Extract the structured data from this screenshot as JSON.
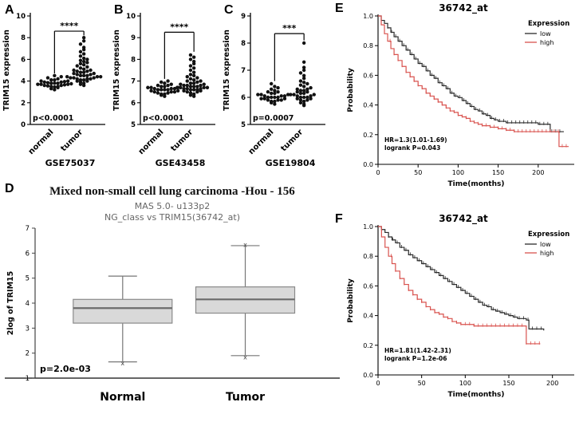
{
  "chart_data": [
    {
      "id": "A",
      "type": "scatter",
      "panel_label": "A",
      "dataset": "GSE75037",
      "ylabel": "TRIM15 expression",
      "ylim": [
        0,
        10
      ],
      "yticks": [
        0,
        2,
        4,
        6,
        8,
        10
      ],
      "groups": [
        "normal",
        "tumor"
      ],
      "pvalue": "p<0.0001",
      "significance": "****",
      "bracket": {
        "top": 8.6,
        "left": 4.7,
        "right": 8.2
      },
      "series": [
        {
          "name": "normal",
          "values": [
            3.2,
            3.3,
            3.4,
            3.45,
            3.5,
            3.5,
            3.55,
            3.6,
            3.6,
            3.65,
            3.7,
            3.7,
            3.7,
            3.75,
            3.8,
            3.8,
            3.8,
            3.85,
            3.9,
            3.9,
            3.95,
            4.0,
            4.0,
            4.1,
            4.1,
            4.2,
            4.3,
            4.4,
            4.5
          ]
        },
        {
          "name": "tumor",
          "values": [
            3.6,
            3.7,
            3.8,
            3.9,
            4.0,
            4.0,
            4.1,
            4.1,
            4.2,
            4.2,
            4.2,
            4.3,
            4.3,
            4.3,
            4.4,
            4.4,
            4.4,
            4.5,
            4.5,
            4.5,
            4.6,
            4.6,
            4.7,
            4.7,
            4.8,
            4.8,
            4.9,
            4.9,
            5.0,
            5.0,
            5.1,
            5.2,
            5.3,
            5.4,
            5.5,
            5.6,
            5.7,
            5.8,
            5.9,
            6.0,
            6.1,
            6.3,
            6.5,
            6.7,
            6.9,
            7.1,
            7.4,
            7.7,
            8.0
          ]
        }
      ]
    },
    {
      "id": "B",
      "type": "scatter",
      "panel_label": "B",
      "dataset": "GSE43458",
      "ylabel": "TRIM15 expression",
      "ylim": [
        5,
        10
      ],
      "yticks": [
        5,
        6,
        7,
        8,
        9,
        10
      ],
      "groups": [
        "normal",
        "tumor"
      ],
      "pvalue": "p<0.0001",
      "significance": "****",
      "bracket": {
        "top": 9.25,
        "left": 7.1,
        "right": 8.35
      },
      "series": [
        {
          "name": "normal",
          "values": [
            6.3,
            6.35,
            6.4,
            6.4,
            6.45,
            6.45,
            6.5,
            6.5,
            6.5,
            6.55,
            6.55,
            6.6,
            6.6,
            6.6,
            6.6,
            6.65,
            6.65,
            6.65,
            6.7,
            6.7,
            6.7,
            6.75,
            6.75,
            6.8,
            6.8,
            6.85,
            6.9,
            6.95,
            7.0
          ]
        },
        {
          "name": "tumor",
          "values": [
            6.3,
            6.35,
            6.4,
            6.45,
            6.5,
            6.5,
            6.55,
            6.55,
            6.6,
            6.6,
            6.6,
            6.65,
            6.65,
            6.65,
            6.7,
            6.7,
            6.7,
            6.7,
            6.75,
            6.75,
            6.75,
            6.8,
            6.8,
            6.8,
            6.85,
            6.85,
            6.9,
            6.9,
            6.95,
            7.0,
            7.0,
            7.05,
            7.1,
            7.15,
            7.2,
            7.25,
            7.3,
            7.4,
            7.5,
            7.6,
            7.7,
            7.8,
            7.9,
            8.0,
            8.1,
            8.2
          ]
        }
      ]
    },
    {
      "id": "C",
      "type": "scatter",
      "panel_label": "C",
      "dataset": "GSE19804",
      "ylabel": "TRIM15 expression",
      "ylim": [
        5,
        9
      ],
      "yticks": [
        5,
        6,
        7,
        8,
        9
      ],
      "groups": [
        "normal",
        "tumor"
      ],
      "pvalue": "p=0.0007",
      "significance": "***",
      "bracket": {
        "top": 8.35,
        "left": 6.6,
        "right": 8.1
      },
      "series": [
        {
          "name": "normal",
          "values": [
            5.75,
            5.8,
            5.85,
            5.85,
            5.9,
            5.9,
            5.9,
            5.95,
            5.95,
            5.95,
            6.0,
            6.0,
            6.0,
            6.0,
            6.05,
            6.05,
            6.05,
            6.1,
            6.1,
            6.1,
            6.15,
            6.15,
            6.2,
            6.2,
            6.25,
            6.3,
            6.35,
            6.4,
            6.5
          ]
        },
        {
          "name": "tumor",
          "values": [
            5.7,
            5.75,
            5.8,
            5.85,
            5.9,
            5.9,
            5.95,
            5.95,
            6.0,
            6.0,
            6.0,
            6.05,
            6.05,
            6.1,
            6.1,
            6.1,
            6.15,
            6.15,
            6.2,
            6.2,
            6.25,
            6.25,
            6.3,
            6.3,
            6.35,
            6.4,
            6.45,
            6.5,
            6.55,
            6.6,
            6.7,
            6.8,
            6.9,
            7.0,
            7.1,
            7.3,
            8.0
          ]
        }
      ]
    },
    {
      "id": "D",
      "type": "box",
      "panel_label": "D",
      "title": "Mixed non-small cell lung carcinoma -Hou - 156",
      "subtitle1": "MAS 5.0- u133p2",
      "subtitle2": "NG_class vs TRIM15(36742_at)",
      "ylabel": "2log of TRIM15",
      "ylim": [
        1,
        7
      ],
      "yticks": [
        1,
        2,
        3,
        4,
        5,
        6,
        7
      ],
      "pvalue": "p=2.0e-03",
      "categories": [
        "Normal",
        "Tumor"
      ],
      "boxes": [
        {
          "label": "Normal",
          "whisker_low": 1.65,
          "q1": 3.2,
          "median": 3.8,
          "q3": 4.15,
          "whisker_high": 5.08,
          "x_marks": [
            1.6
          ]
        },
        {
          "label": "Tumor",
          "whisker_low": 1.9,
          "q1": 3.6,
          "median": 4.15,
          "q3": 4.65,
          "whisker_high": 6.3,
          "x_marks": [
            1.85,
            6.35
          ]
        }
      ]
    },
    {
      "id": "E",
      "type": "km",
      "panel_label": "E",
      "title": "36742_at",
      "xlabel": "Time(months)",
      "ylabel": "Probability",
      "xlim": [
        0,
        245
      ],
      "xticks": [
        0,
        50,
        100,
        150,
        200
      ],
      "ylim": [
        0,
        1
      ],
      "yticks": [
        0,
        0.2,
        0.4,
        0.6,
        0.8,
        1
      ],
      "legend_title": "Expression",
      "annotation": [
        "HR=1.3(1.01-1.69)",
        "logrank P=0.043"
      ],
      "series": [
        {
          "name": "low",
          "color": "#2b2b2b",
          "points": [
            [
              0,
              1
            ],
            [
              4,
              0.97
            ],
            [
              8,
              0.95
            ],
            [
              12,
              0.92
            ],
            [
              16,
              0.89
            ],
            [
              20,
              0.86
            ],
            [
              25,
              0.83
            ],
            [
              30,
              0.8
            ],
            [
              35,
              0.77
            ],
            [
              40,
              0.74
            ],
            [
              45,
              0.71
            ],
            [
              50,
              0.68
            ],
            [
              55,
              0.66
            ],
            [
              60,
              0.63
            ],
            [
              65,
              0.6
            ],
            [
              70,
              0.58
            ],
            [
              75,
              0.55
            ],
            [
              80,
              0.53
            ],
            [
              85,
              0.51
            ],
            [
              90,
              0.48
            ],
            [
              95,
              0.46
            ],
            [
              100,
              0.45
            ],
            [
              105,
              0.43
            ],
            [
              110,
              0.41
            ],
            [
              115,
              0.39
            ],
            [
              120,
              0.37
            ],
            [
              125,
              0.36
            ],
            [
              130,
              0.34
            ],
            [
              135,
              0.33
            ],
            [
              140,
              0.31
            ],
            [
              145,
              0.3
            ],
            [
              150,
              0.29
            ],
            [
              160,
              0.28
            ],
            [
              170,
              0.28
            ],
            [
              180,
              0.28
            ],
            [
              195,
              0.28
            ],
            [
              200,
              0.27
            ],
            [
              210,
              0.27
            ],
            [
              215,
              0.22
            ],
            [
              232,
              0.22
            ]
          ]
        },
        {
          "name": "high",
          "color": "#d9534f",
          "points": [
            [
              0,
              1
            ],
            [
              4,
              0.94
            ],
            [
              8,
              0.88
            ],
            [
              12,
              0.83
            ],
            [
              16,
              0.78
            ],
            [
              20,
              0.74
            ],
            [
              25,
              0.7
            ],
            [
              30,
              0.66
            ],
            [
              35,
              0.62
            ],
            [
              40,
              0.59
            ],
            [
              45,
              0.56
            ],
            [
              50,
              0.53
            ],
            [
              55,
              0.51
            ],
            [
              60,
              0.48
            ],
            [
              65,
              0.46
            ],
            [
              70,
              0.44
            ],
            [
              75,
              0.42
            ],
            [
              80,
              0.4
            ],
            [
              85,
              0.38
            ],
            [
              90,
              0.36
            ],
            [
              95,
              0.35
            ],
            [
              100,
              0.33
            ],
            [
              105,
              0.32
            ],
            [
              110,
              0.31
            ],
            [
              115,
              0.29
            ],
            [
              120,
              0.28
            ],
            [
              125,
              0.27
            ],
            [
              130,
              0.26
            ],
            [
              140,
              0.25
            ],
            [
              150,
              0.24
            ],
            [
              160,
              0.23
            ],
            [
              170,
              0.22
            ],
            [
              185,
              0.22
            ],
            [
              200,
              0.22
            ],
            [
              222,
              0.22
            ],
            [
              226,
              0.12
            ],
            [
              238,
              0.12
            ]
          ]
        }
      ]
    },
    {
      "id": "F",
      "type": "km",
      "panel_label": "F",
      "title": "36742_at",
      "xlabel": "Time(months)",
      "ylabel": "Probability",
      "xlim": [
        0,
        225
      ],
      "xticks": [
        0,
        50,
        100,
        150,
        200
      ],
      "ylim": [
        0,
        1
      ],
      "yticks": [
        0,
        0.2,
        0.4,
        0.6,
        0.8,
        1
      ],
      "legend_title": "Expression",
      "annotation": [
        "HR=1.81(1.42-2.31)",
        "logrank P=1.2e-06"
      ],
      "series": [
        {
          "name": "low",
          "color": "#2b2b2b",
          "points": [
            [
              0,
              1
            ],
            [
              4,
              0.98
            ],
            [
              8,
              0.96
            ],
            [
              12,
              0.93
            ],
            [
              16,
              0.91
            ],
            [
              20,
              0.89
            ],
            [
              25,
              0.86
            ],
            [
              30,
              0.84
            ],
            [
              35,
              0.81
            ],
            [
              40,
              0.79
            ],
            [
              45,
              0.77
            ],
            [
              50,
              0.75
            ],
            [
              55,
              0.73
            ],
            [
              60,
              0.71
            ],
            [
              65,
              0.69
            ],
            [
              70,
              0.67
            ],
            [
              75,
              0.65
            ],
            [
              80,
              0.63
            ],
            [
              85,
              0.61
            ],
            [
              90,
              0.59
            ],
            [
              95,
              0.57
            ],
            [
              100,
              0.55
            ],
            [
              105,
              0.53
            ],
            [
              110,
              0.51
            ],
            [
              115,
              0.49
            ],
            [
              120,
              0.47
            ],
            [
              125,
              0.46
            ],
            [
              130,
              0.44
            ],
            [
              135,
              0.43
            ],
            [
              140,
              0.42
            ],
            [
              145,
              0.41
            ],
            [
              150,
              0.4
            ],
            [
              155,
              0.39
            ],
            [
              160,
              0.38
            ],
            [
              165,
              0.38
            ],
            [
              170,
              0.37
            ],
            [
              173,
              0.31
            ],
            [
              178,
              0.31
            ],
            [
              183,
              0.31
            ],
            [
              190,
              0.3
            ]
          ]
        },
        {
          "name": "high",
          "color": "#d9534f",
          "points": [
            [
              0,
              1
            ],
            [
              4,
              0.93
            ],
            [
              8,
              0.86
            ],
            [
              12,
              0.8
            ],
            [
              16,
              0.75
            ],
            [
              20,
              0.7
            ],
            [
              25,
              0.65
            ],
            [
              30,
              0.61
            ],
            [
              35,
              0.57
            ],
            [
              40,
              0.54
            ],
            [
              45,
              0.51
            ],
            [
              50,
              0.49
            ],
            [
              55,
              0.46
            ],
            [
              60,
              0.44
            ],
            [
              65,
              0.42
            ],
            [
              70,
              0.41
            ],
            [
              75,
              0.39
            ],
            [
              80,
              0.38
            ],
            [
              85,
              0.36
            ],
            [
              90,
              0.35
            ],
            [
              95,
              0.34
            ],
            [
              100,
              0.34
            ],
            [
              110,
              0.33
            ],
            [
              120,
              0.33
            ],
            [
              130,
              0.33
            ],
            [
              140,
              0.33
            ],
            [
              150,
              0.33
            ],
            [
              160,
              0.33
            ],
            [
              166,
              0.33
            ],
            [
              170,
              0.21
            ],
            [
              178,
              0.21
            ],
            [
              186,
              0.21
            ]
          ]
        }
      ]
    }
  ]
}
